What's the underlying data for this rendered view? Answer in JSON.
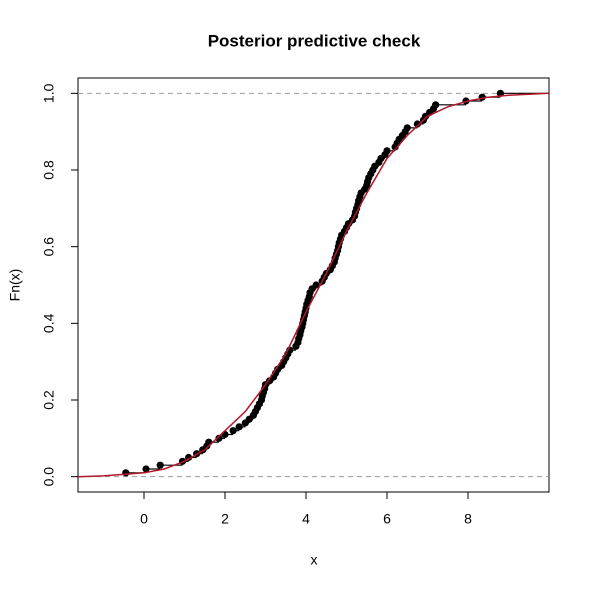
{
  "chart_data": {
    "type": "ecdf",
    "title": "Posterior predictive check",
    "xlabel": "x",
    "ylabel": "Fn(x)",
    "xlim": [
      -1.63,
      10.0
    ],
    "ylim": [
      -0.04,
      1.04
    ],
    "xticks": [
      0,
      2,
      4,
      6,
      8
    ],
    "yticks": [
      {
        "value": 0,
        "label": "0.0"
      },
      {
        "value": 0.2,
        "label": "0.2"
      },
      0.4,
      0.6,
      0.8,
      {
        "value": 1,
        "label": "1.0"
      }
    ],
    "reference_lines": [
      0,
      1
    ],
    "series": [
      {
        "color": "#000000",
        "x": [
          -0.45,
          0.05,
          0.4,
          0.95,
          1.1,
          1.3,
          1.45,
          1.55,
          1.6,
          1.85,
          2.0,
          2.2,
          2.35,
          2.5,
          2.6,
          2.7,
          2.75,
          2.8,
          2.85,
          2.9,
          2.92,
          2.95,
          2.98,
          3.0,
          3.1,
          3.2,
          3.25,
          3.3,
          3.4,
          3.45,
          3.5,
          3.55,
          3.6,
          3.75,
          3.8,
          3.82,
          3.85,
          3.87,
          3.9,
          3.92,
          3.94,
          3.96,
          3.98,
          4.0,
          4.02,
          4.05,
          4.08,
          4.1,
          4.15,
          4.25,
          4.4,
          4.45,
          4.5,
          4.6,
          4.65,
          4.7,
          4.72,
          4.75,
          4.78,
          4.8,
          4.82,
          4.85,
          4.88,
          4.95,
          5.0,
          5.05,
          5.15,
          5.2,
          5.22,
          5.25,
          5.28,
          5.3,
          5.33,
          5.36,
          5.45,
          5.5,
          5.52,
          5.55,
          5.6,
          5.65,
          5.7,
          5.8,
          5.85,
          5.95,
          6.0,
          6.2,
          6.25,
          6.3,
          6.38,
          6.45,
          6.5,
          6.75,
          6.9,
          6.95,
          7.05,
          7.15,
          7.2,
          7.95,
          8.35,
          8.8
        ],
        "values": [
          0.01,
          0.02,
          0.03,
          0.04,
          0.05,
          0.06,
          0.07,
          0.08,
          0.09,
          0.1,
          0.11,
          0.12,
          0.13,
          0.14,
          0.15,
          0.16,
          0.17,
          0.18,
          0.19,
          0.2,
          0.21,
          0.22,
          0.23,
          0.24,
          0.25,
          0.26,
          0.27,
          0.28,
          0.29,
          0.3,
          0.31,
          0.32,
          0.33,
          0.34,
          0.35,
          0.36,
          0.37,
          0.38,
          0.39,
          0.4,
          0.41,
          0.42,
          0.43,
          0.44,
          0.45,
          0.46,
          0.47,
          0.48,
          0.49,
          0.5,
          0.51,
          0.52,
          0.53,
          0.54,
          0.55,
          0.56,
          0.57,
          0.58,
          0.59,
          0.6,
          0.61,
          0.62,
          0.63,
          0.64,
          0.65,
          0.66,
          0.67,
          0.68,
          0.69,
          0.7,
          0.71,
          0.72,
          0.73,
          0.74,
          0.75,
          0.76,
          0.77,
          0.78,
          0.79,
          0.8,
          0.81,
          0.82,
          0.83,
          0.84,
          0.85,
          0.86,
          0.87,
          0.88,
          0.89,
          0.9,
          0.91,
          0.92,
          0.93,
          0.94,
          0.95,
          0.96,
          0.97,
          0.98,
          0.99,
          1.0
        ]
      },
      {
        "color": "#b2182b",
        "x": [
          -1.63,
          -1,
          0,
          0.5,
          1,
          1.5,
          2,
          2.5,
          3,
          3.5,
          4,
          4.5,
          5,
          5.5,
          6,
          6.5,
          7,
          7.5,
          8,
          8.5,
          9,
          10
        ],
        "values": [
          0,
          0.002,
          0.01,
          0.02,
          0.04,
          0.07,
          0.12,
          0.17,
          0.24,
          0.32,
          0.43,
          0.53,
          0.64,
          0.74,
          0.83,
          0.89,
          0.94,
          0.965,
          0.98,
          0.99,
          0.995,
          1.0
        ]
      }
    ]
  }
}
